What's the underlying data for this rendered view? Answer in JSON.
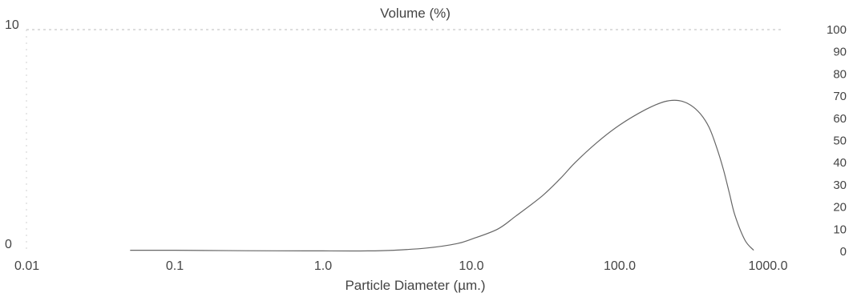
{
  "chart_data": {
    "type": "line",
    "title": "Volume (%)",
    "xlabel": "Particle Diameter (µm.)",
    "ylabel": "",
    "x_scale": "log",
    "xlim": [
      0.01,
      1000
    ],
    "ylim": [
      0,
      10
    ],
    "ylim_right": [
      0,
      100
    ],
    "x_ticks": [
      {
        "value": 0.01,
        "label": "0.01"
      },
      {
        "value": 0.1,
        "label": "0.1"
      },
      {
        "value": 1,
        "label": "1.0"
      },
      {
        "value": 10,
        "label": "10.0"
      },
      {
        "value": 100,
        "label": "100.0"
      },
      {
        "value": 1000,
        "label": "1000.0"
      }
    ],
    "y_left_ticks": [
      {
        "value": 0,
        "label": "0"
      },
      {
        "value": 10,
        "label": "10"
      }
    ],
    "y_right_ticks": [
      {
        "value": 0,
        "label": "0"
      },
      {
        "value": 10,
        "label": "10"
      },
      {
        "value": 20,
        "label": "20"
      },
      {
        "value": 30,
        "label": "30"
      },
      {
        "value": 40,
        "label": "40"
      },
      {
        "value": 50,
        "label": "50"
      },
      {
        "value": 60,
        "label": "60"
      },
      {
        "value": 70,
        "label": "70"
      },
      {
        "value": 80,
        "label": "80"
      },
      {
        "value": 90,
        "label": "90"
      },
      {
        "value": 100,
        "label": "100"
      }
    ],
    "grid": false,
    "series": [
      {
        "color": "#666666",
        "x": [
          0.05,
          0.1,
          0.3,
          1,
          2,
          3,
          5,
          8,
          10,
          15,
          20,
          30,
          40,
          50,
          70,
          100,
          150,
          200,
          250,
          300,
          350,
          400,
          450,
          500,
          550,
          600,
          700,
          800
        ],
        "y": [
          0.05,
          0.05,
          0.03,
          0.02,
          0.02,
          0.05,
          0.15,
          0.35,
          0.55,
          1.0,
          1.6,
          2.5,
          3.3,
          4.0,
          4.9,
          5.7,
          6.4,
          6.75,
          6.8,
          6.6,
          6.2,
          5.6,
          4.7,
          3.7,
          2.6,
          1.6,
          0.5,
          0.05
        ]
      }
    ]
  }
}
